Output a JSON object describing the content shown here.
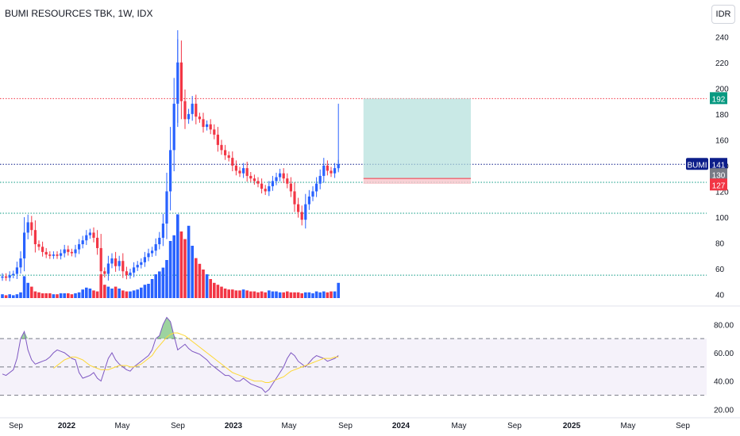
{
  "header": {
    "title": "BUMI RESOURCES TBK, 1W, IDX",
    "currency": "IDR"
  },
  "price_axis": {
    "ticks": [
      "40",
      "60",
      "80",
      "100",
      "120",
      "140",
      "160",
      "180",
      "200",
      "220",
      "240"
    ]
  },
  "rsi_axis": {
    "ticks": [
      "20.00",
      "40.00",
      "60.00",
      "80.00"
    ]
  },
  "time_axis": {
    "ticks": [
      "Sep",
      "2022",
      "May",
      "Sep",
      "2023",
      "May",
      "Sep",
      "2024",
      "May",
      "Sep",
      "2025",
      "May",
      "Sep"
    ]
  },
  "labels": {
    "symbol": "BUMI",
    "last_price": "141",
    "target_price": "192",
    "entry_price": "130",
    "stop_price": "127"
  },
  "colors": {
    "up": "#2962ff",
    "down": "#f23645",
    "rsi_line": "#7e57c2",
    "rsi_ma": "#fdd835",
    "profit_zone": "#b2dfdb",
    "loss_zone": "#f8c6cb",
    "resistance": "#f23645",
    "support": "#089981",
    "price_tag": "#0d1e8a"
  },
  "chart_data": [
    {
      "type": "candlestick",
      "title": "BUMI RESOURCES TBK, 1W, IDX",
      "interval": "1W",
      "ylim": [
        36,
        250
      ],
      "series": [
        {
          "name": "Price",
          "values": [
            54,
            53,
            55,
            56,
            61,
            68,
            88,
            96,
            90,
            79,
            77,
            73,
            71,
            70,
            71,
            70,
            72,
            75,
            73,
            72,
            75,
            79,
            82,
            86,
            88,
            84,
            76,
            58,
            56,
            64,
            68,
            62,
            66,
            58,
            55,
            57,
            61,
            63,
            65,
            69,
            72,
            74,
            79,
            84,
            95,
            120,
            152,
            188,
            220,
            190,
            176,
            180,
            188,
            178,
            176,
            170,
            172,
            168,
            164,
            156,
            152,
            148,
            146,
            140,
            136,
            134,
            138,
            132,
            130,
            128,
            126,
            122,
            120,
            124,
            128,
            131,
            134,
            130,
            126,
            120,
            110,
            104,
            98,
            110,
            116,
            120,
            126,
            132,
            140,
            136,
            134,
            138,
            141
          ]
        }
      ],
      "volume": [
        4,
        3,
        4,
        3,
        4,
        6,
        23,
        16,
        12,
        7,
        6,
        5,
        5,
        5,
        4,
        4,
        5,
        5,
        5,
        4,
        5,
        6,
        9,
        11,
        10,
        8,
        7,
        25,
        14,
        12,
        10,
        12,
        10,
        8,
        7,
        7,
        8,
        9,
        11,
        14,
        15,
        20,
        25,
        28,
        32,
        40,
        60,
        66,
        88,
        70,
        62,
        76,
        55,
        42,
        36,
        30,
        25,
        20,
        16,
        14,
        12,
        10,
        9,
        9,
        8,
        8,
        9,
        8,
        7,
        7,
        6,
        7,
        6,
        8,
        7,
        7,
        6,
        6,
        7,
        6,
        6,
        6,
        5,
        6,
        6,
        5,
        7,
        6,
        7,
        6,
        7,
        7,
        16
      ],
      "horizontal_levels": [
        192,
        141,
        127,
        103,
        55
      ],
      "position": {
        "target": 192,
        "entry": 130,
        "stop": 127
      }
    },
    {
      "type": "line",
      "title": "RSI",
      "ylim": [
        18,
        88
      ],
      "levels": [
        70,
        50,
        30
      ],
      "series": [
        {
          "name": "RSI",
          "values": [
            45,
            44,
            46,
            48,
            56,
            70,
            75,
            62,
            55,
            52,
            53,
            54,
            55,
            57,
            60,
            62,
            61,
            60,
            58,
            56,
            55,
            46,
            42,
            43,
            44,
            46,
            42,
            40,
            48,
            56,
            60,
            55,
            52,
            50,
            48,
            47,
            50,
            52,
            54,
            56,
            58,
            62,
            70,
            72,
            80,
            85,
            82,
            72,
            62,
            64,
            66,
            63,
            61,
            60,
            59,
            57,
            55,
            52,
            50,
            48,
            46,
            44,
            44,
            42,
            40,
            40,
            42,
            40,
            38,
            37,
            36,
            35,
            32,
            34,
            38,
            42,
            46,
            50,
            56,
            60,
            58,
            54,
            52,
            50,
            53,
            56,
            58,
            57,
            56,
            54,
            55,
            56,
            58
          ]
        },
        {
          "name": "RSI MA",
          "values": [
            null,
            null,
            null,
            null,
            null,
            null,
            null,
            null,
            null,
            null,
            null,
            null,
            null,
            null,
            49,
            51,
            53,
            55,
            56,
            57,
            57,
            56,
            55,
            53,
            51,
            50,
            49,
            48,
            48,
            48,
            49,
            50,
            51,
            51,
            51,
            50,
            50,
            51,
            52,
            54,
            56,
            58,
            62,
            65,
            68,
            71,
            73,
            74,
            74,
            73,
            72,
            70,
            68,
            66,
            64,
            62,
            60,
            58,
            56,
            54,
            52,
            50,
            48,
            46,
            45,
            44,
            43,
            42,
            41,
            40,
            40,
            40,
            39,
            39,
            40,
            41,
            42,
            43,
            45,
            47,
            48,
            49,
            50,
            51,
            52,
            53,
            54,
            55,
            56,
            56,
            56,
            57,
            57
          ]
        }
      ]
    }
  ]
}
